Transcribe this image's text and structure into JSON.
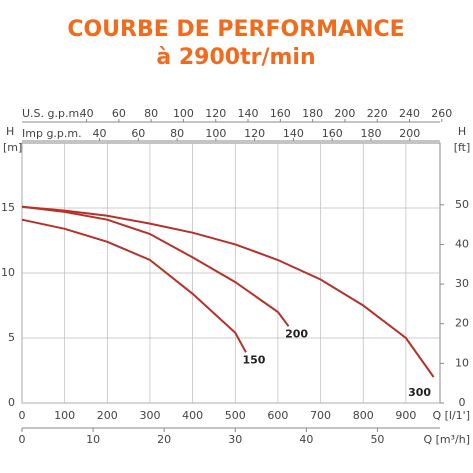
{
  "chart_data": {
    "type": "line",
    "title": "COURBE DE PERFORMANCE",
    "subtitle": "à 2900tr/min",
    "xlabel": "Q [l/1']",
    "x2label": "Q [m³/h]",
    "ylabel_top": "H",
    "ylabel": "[m]",
    "y2label_top": "H",
    "y2label": "[ft]",
    "top1label": "U.S. g.p.m.",
    "top2label": "Imp g.p.m.",
    "xlim": [
      0,
      980
    ],
    "xticks": [
      0,
      100,
      200,
      300,
      400,
      500,
      600,
      700,
      800,
      900
    ],
    "ylim": [
      0,
      20
    ],
    "yticks": [
      0,
      5,
      10,
      15
    ],
    "y2lim": [
      0,
      65.6
    ],
    "y2ticks": [
      0,
      10,
      20,
      30,
      40,
      50
    ],
    "x2lim": [
      0,
      58.8
    ],
    "x2ticks": [
      0,
      10,
      20,
      30,
      40,
      50
    ],
    "top1lim": [
      0,
      258.9
    ],
    "top1ticks": [
      40,
      60,
      80,
      100,
      120,
      140,
      160,
      180,
      200,
      220,
      240,
      260
    ],
    "top2lim": [
      0,
      215.6
    ],
    "top2ticks": [
      40,
      60,
      80,
      100,
      120,
      140,
      160,
      180,
      200
    ],
    "grid": true,
    "series": [
      {
        "name": "150",
        "color": "#b5322a",
        "x": [
          0,
          100,
          200,
          300,
          400,
          500,
          525
        ],
        "values": [
          14.1,
          13.4,
          12.4,
          11.0,
          8.4,
          5.4,
          3.9
        ]
      },
      {
        "name": "200",
        "color": "#b5322a",
        "x": [
          0,
          100,
          200,
          300,
          400,
          500,
          600,
          625
        ],
        "values": [
          15.1,
          14.7,
          14.1,
          13.0,
          11.2,
          9.3,
          7.0,
          5.9
        ]
      },
      {
        "name": "300",
        "color": "#b5322a",
        "x": [
          0,
          100,
          200,
          300,
          400,
          500,
          600,
          700,
          800,
          900,
          965
        ],
        "values": [
          15.1,
          14.8,
          14.4,
          13.8,
          13.1,
          12.2,
          11.0,
          9.5,
          7.5,
          5.0,
          2.0
        ]
      }
    ]
  }
}
